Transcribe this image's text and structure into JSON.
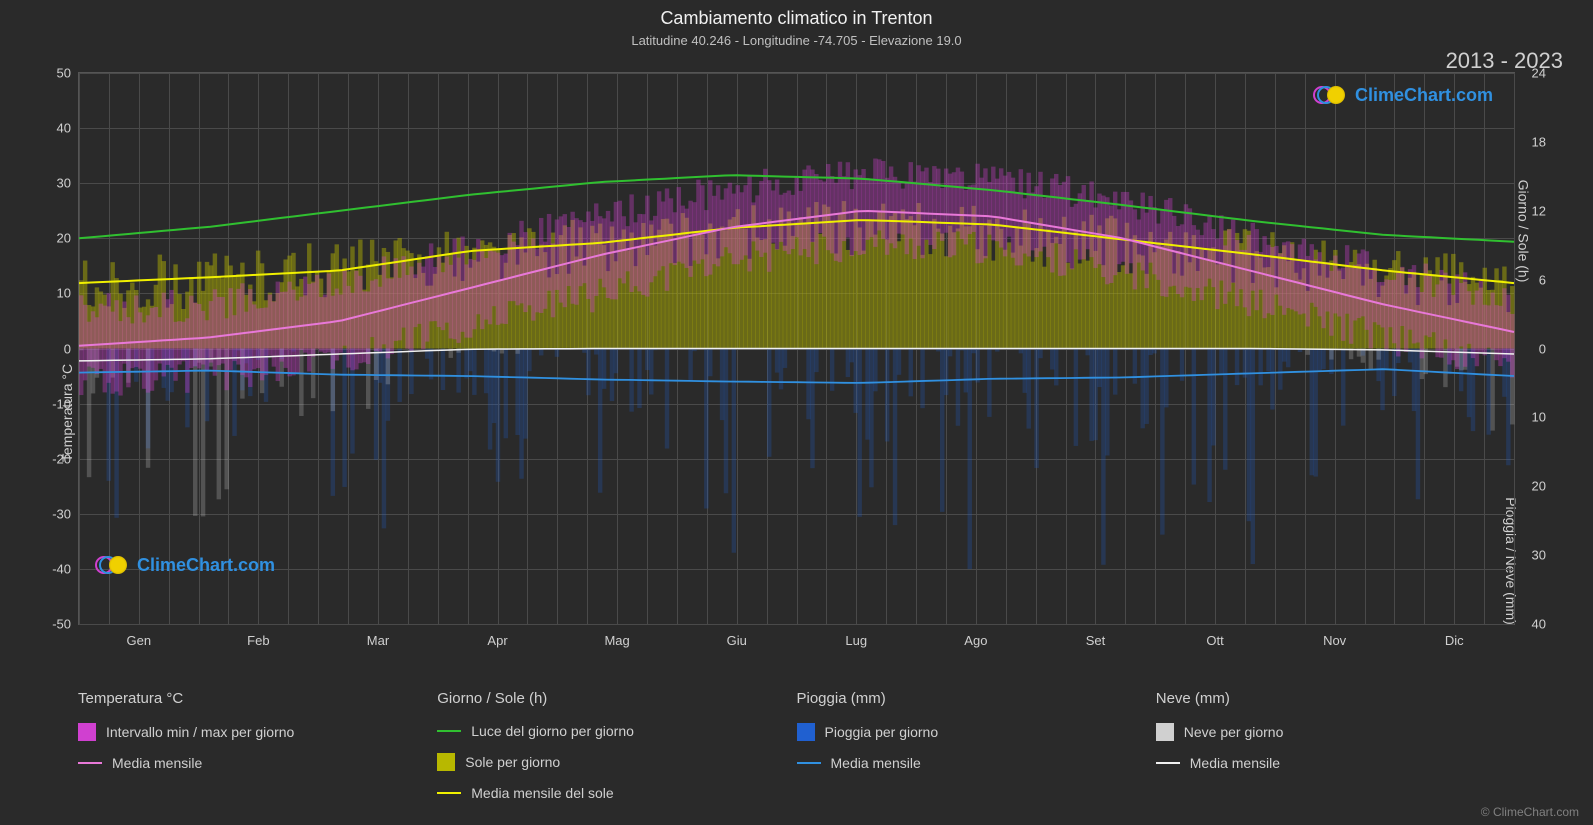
{
  "title": "Cambiamento climatico in Trenton",
  "subtitle": "Latitudine 40.246 - Longitudine -74.705 - Elevazione 19.0",
  "year_range": "2013 - 2023",
  "watermark_text": "ClimeChart.com",
  "watermark_color": "#3090e0",
  "copyright": "© ClimeChart.com",
  "background_color": "#2a2a2a",
  "grid_color": "#4a4a4a",
  "plot_border_color": "#555555",
  "axis_left": {
    "title": "Temperatura °C",
    "min": -50,
    "max": 50,
    "step": 10,
    "ticks": [
      -50,
      -40,
      -30,
      -20,
      -10,
      0,
      10,
      20,
      30,
      40,
      50
    ]
  },
  "axis_right_top": {
    "title": "Giorno / Sole (h)",
    "min": 0,
    "max": 24,
    "step": 6,
    "ticks": [
      0,
      6,
      12,
      18,
      24
    ]
  },
  "axis_right_bottom": {
    "title": "Pioggia / Neve (mm)",
    "min": 0,
    "max": 40,
    "step": 10,
    "ticks": [
      0,
      10,
      20,
      30,
      40
    ]
  },
  "months": [
    "Gen",
    "Feb",
    "Mar",
    "Apr",
    "Mag",
    "Giu",
    "Lug",
    "Ago",
    "Set",
    "Ott",
    "Nov",
    "Dic"
  ],
  "series": {
    "temp_range": {
      "color": "#d040d0",
      "low": [
        -6,
        -5,
        -2,
        4,
        10,
        16,
        19,
        18,
        14,
        8,
        2,
        -3
      ],
      "high": [
        7,
        8,
        12,
        18,
        24,
        29,
        32,
        31,
        27,
        20,
        14,
        9
      ]
    },
    "temp_mean": {
      "color": "#e878d8",
      "values": [
        0.5,
        2,
        5,
        11,
        17,
        22,
        25,
        24,
        20,
        14,
        8,
        3
      ]
    },
    "daylight": {
      "color": "#30c030",
      "values": [
        9.6,
        10.6,
        12.0,
        13.4,
        14.5,
        15.1,
        14.8,
        13.8,
        12.5,
        11.1,
        9.9,
        9.3
      ]
    },
    "sun_bars": {
      "color": "#b8b800",
      "values": [
        5.5,
        6.0,
        7.0,
        8.0,
        9.0,
        10.0,
        10.5,
        10.0,
        9.0,
        8.0,
        6.5,
        5.5
      ]
    },
    "sun_mean": {
      "color": "#f0f000",
      "values": [
        5.7,
        6.2,
        6.8,
        8.5,
        9.2,
        10.5,
        11.2,
        10.8,
        9.5,
        8.2,
        6.8,
        5.7
      ]
    },
    "rain_bars": {
      "color": "#2060d0",
      "opacity": 0.25
    },
    "rain_mean": {
      "color": "#3090e0",
      "values": [
        3.5,
        3.2,
        3.8,
        4.0,
        4.5,
        4.8,
        5.0,
        4.4,
        4.2,
        3.6,
        3.0,
        4.0
      ]
    },
    "snow_bars": {
      "color": "#d0d0d0",
      "opacity": 0.25
    },
    "snow_mean": {
      "color": "#f0f0f0",
      "values": [
        1.8,
        1.5,
        0.8,
        0.1,
        0,
        0,
        0,
        0,
        0,
        0,
        0.2,
        0.8
      ]
    }
  },
  "legend": {
    "cols": [
      {
        "header": "Temperatura °C",
        "items": [
          {
            "type": "swatch",
            "color": "#d040d0",
            "label": "Intervallo min / max per giorno"
          },
          {
            "type": "line",
            "color": "#e878d8",
            "label": "Media mensile"
          }
        ]
      },
      {
        "header": "Giorno / Sole (h)",
        "items": [
          {
            "type": "line",
            "color": "#30c030",
            "label": "Luce del giorno per giorno"
          },
          {
            "type": "swatch",
            "color": "#b8b800",
            "label": "Sole per giorno"
          },
          {
            "type": "line",
            "color": "#f0f000",
            "label": "Media mensile del sole"
          }
        ]
      },
      {
        "header": "Pioggia (mm)",
        "items": [
          {
            "type": "swatch",
            "color": "#2060d0",
            "label": "Pioggia per giorno"
          },
          {
            "type": "line",
            "color": "#3090e0",
            "label": "Media mensile"
          }
        ]
      },
      {
        "header": "Neve (mm)",
        "items": [
          {
            "type": "swatch",
            "color": "#d0d0d0",
            "label": "Neve per giorno"
          },
          {
            "type": "line",
            "color": "#f0f0f0",
            "label": "Media mensile"
          }
        ]
      }
    ]
  }
}
